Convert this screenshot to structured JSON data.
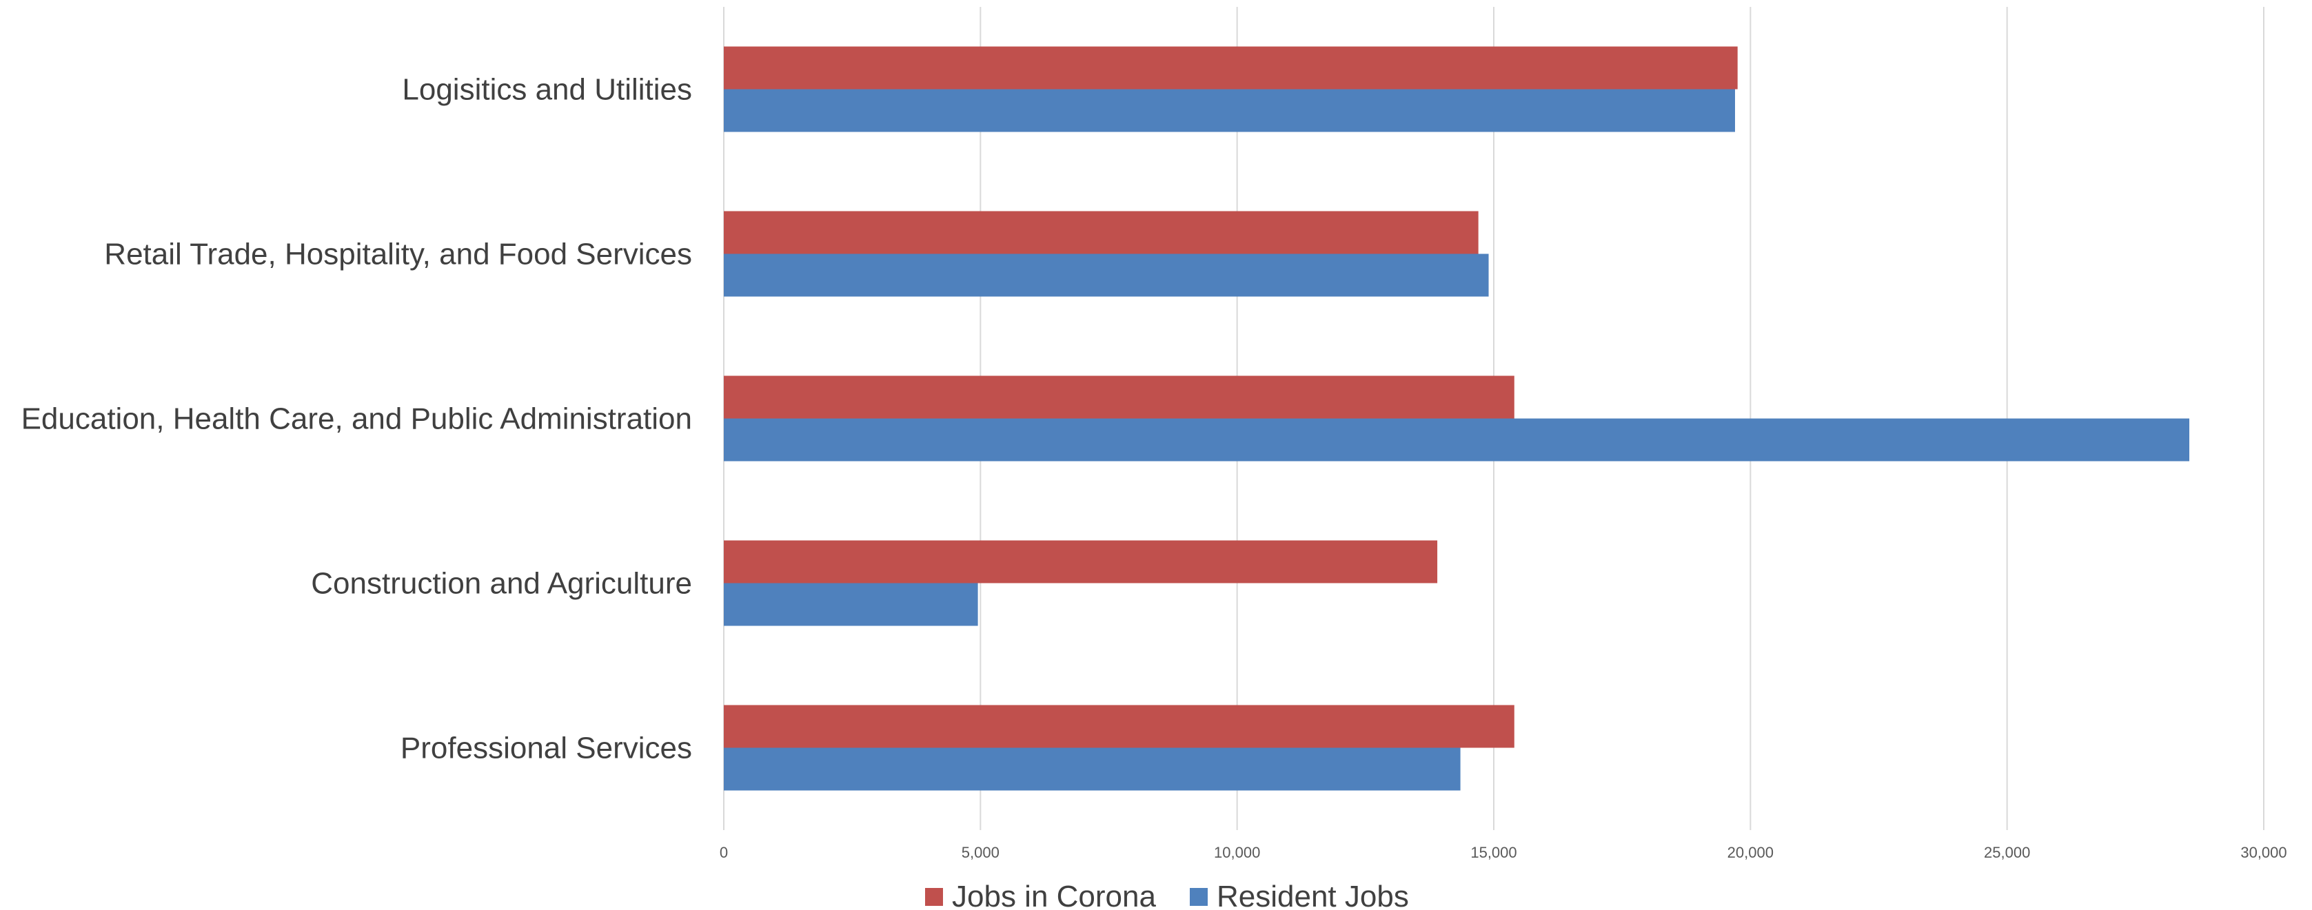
{
  "chart_data": {
    "type": "bar",
    "orientation": "horizontal",
    "categories": [
      "Logisitics and Utilities",
      "Retail Trade, Hospitality, and Food Services",
      "Education, Health Care, and Public Administration",
      "Construction and Agriculture",
      "Professional Services"
    ],
    "series": [
      {
        "name": "Jobs in Corona",
        "color": "#c0504d",
        "values": [
          19750,
          14700,
          15400,
          13900,
          15400
        ]
      },
      {
        "name": "Resident Jobs",
        "color": "#4f81bd",
        "values": [
          19700,
          14900,
          28550,
          4950,
          14350
        ]
      }
    ],
    "xlim": [
      0,
      30000
    ],
    "x_ticks": [
      0,
      5000,
      10000,
      15000,
      20000,
      25000,
      30000
    ],
    "x_tick_labels": [
      "0",
      "5,000",
      "10,000",
      "15,000",
      "20,000",
      "25,000",
      "30,000"
    ],
    "grid": true,
    "legend_position": "bottom",
    "title": "",
    "xlabel": "",
    "ylabel": ""
  }
}
